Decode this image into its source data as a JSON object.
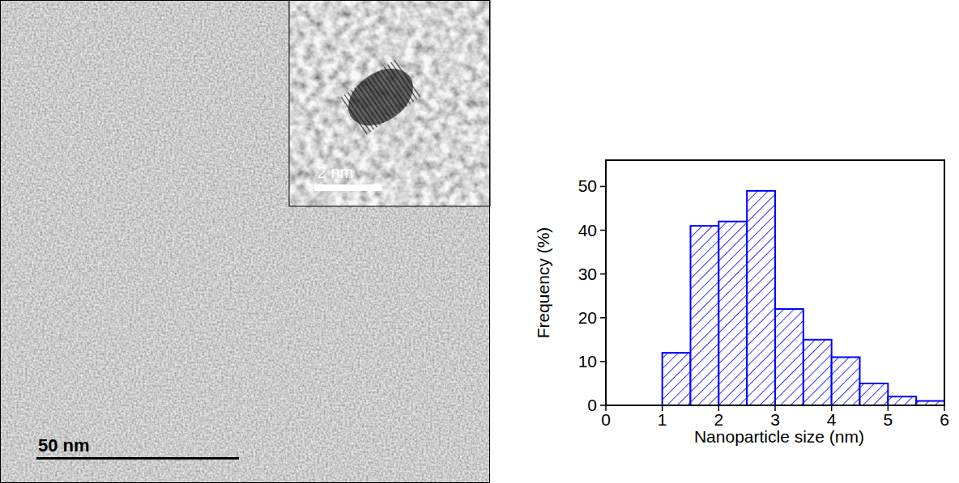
{
  "image": {
    "scale_bar": "50 nm",
    "inset_scale_bar": "2 nm"
  },
  "chart_data": {
    "type": "histogram",
    "x_label": "Nanoparticle size (nm)",
    "y_label": "Frequency (%)",
    "bins": [
      1,
      1.5,
      2,
      2.5,
      3,
      3.5,
      4,
      4.5,
      5,
      5.5,
      6
    ],
    "values": [
      12,
      41,
      42,
      49,
      22,
      15,
      11,
      5,
      2,
      1
    ],
    "color": "#0000ff",
    "xlim": [
      0,
      6
    ],
    "xticks": [
      0,
      1,
      2,
      3,
      4,
      5,
      6
    ],
    "ylim": [
      0,
      56
    ],
    "yticks": [
      0,
      10,
      20,
      30,
      40,
      50
    ],
    "grid": false
  }
}
